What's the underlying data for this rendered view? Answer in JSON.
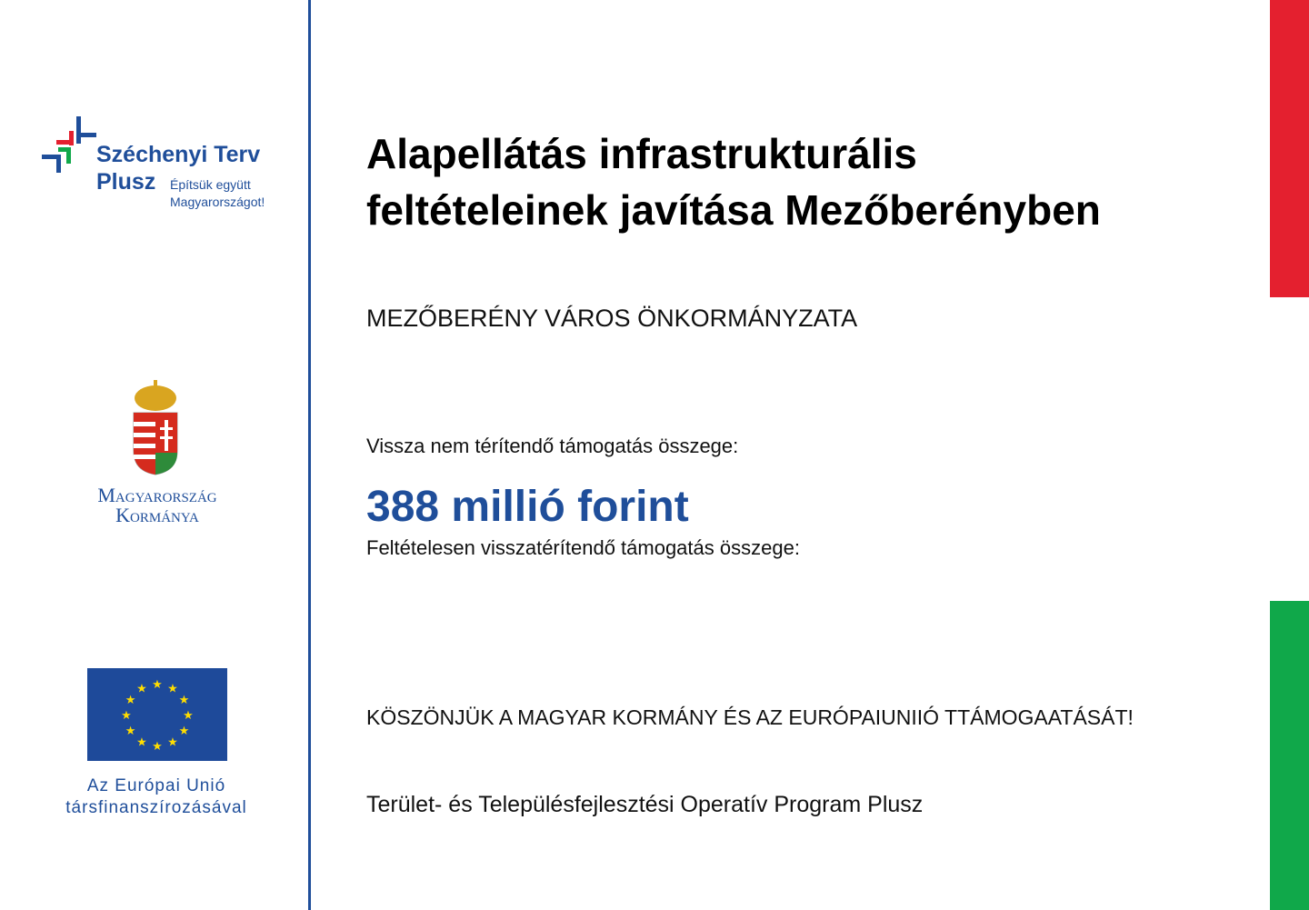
{
  "logos": {
    "szechenyi": {
      "title": "Széchenyi Terv",
      "plus": "Plusz",
      "slogan_line1": "Építsük együtt",
      "slogan_line2": "Magyarországot!"
    },
    "government": {
      "line1": "Magyarország",
      "line2": "Kormánya"
    },
    "eu": {
      "line1": "Az Európai Unió",
      "line2": "társfinanszírozásával"
    }
  },
  "colors": {
    "blue": "#1f4e9a",
    "red": "#e4202f",
    "green": "#10a84a"
  },
  "main": {
    "title_line1": "Alapellátás infrastrukturális",
    "title_line2": "feltételeinek javítása Mezőberényben",
    "beneficiary": "MEZŐBERÉNY VÁROS ÖNKORMÁNYZATA",
    "grant_label": "Vissza nem térítendő támogatás összege:",
    "grant_amount": "388 millió forint",
    "refundable_label": "Feltételesen visszatérítendő támogatás összege:",
    "thanks": "KÖSZÖNJÜK A MAGYAR KORMÁNY ÉS AZ EURÓPAIUNIIÓ TTÁMOGAATÁSÁT!",
    "program": "Terület- és Településfejlesztési Operatív Program Plusz"
  }
}
